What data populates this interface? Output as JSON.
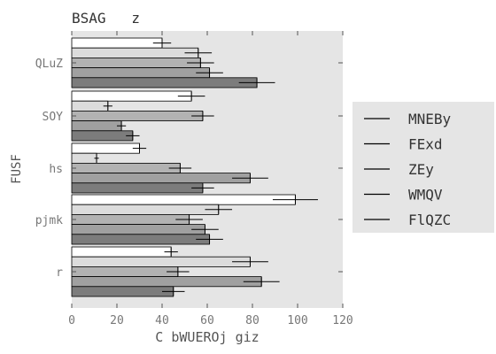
{
  "chart_data": {
    "type": "bar",
    "orientation": "horizontal",
    "title": "BSAG   z",
    "xlabel": "C bWUEROj giz",
    "ylabel": "FUSF",
    "xlim": [
      0,
      120
    ],
    "xticks": [
      0,
      20,
      40,
      60,
      80,
      100,
      120
    ],
    "categories": [
      "QLuZ",
      "SOY",
      "hs",
      "pjmk",
      "r"
    ],
    "grid": false,
    "legend_position": "right",
    "series": [
      {
        "name": "MNEBy",
        "color": "#ffffff",
        "values": [
          40,
          53,
          30,
          99,
          44
        ],
        "errors": [
          4,
          6,
          3,
          10,
          3
        ]
      },
      {
        "name": "FExd",
        "color": "#dcdcdc",
        "values": [
          56,
          16,
          11,
          65,
          79
        ],
        "errors": [
          6,
          2,
          1,
          6,
          8
        ]
      },
      {
        "name": "ZEy",
        "color": "#b2b2b2",
        "values": [
          57,
          58,
          48,
          52,
          47
        ],
        "errors": [
          6,
          5,
          5,
          6,
          5
        ]
      },
      {
        "name": "WMQV",
        "color": "#a0a0a0",
        "values": [
          61,
          22,
          79,
          59,
          84
        ],
        "errors": [
          6,
          2,
          8,
          6,
          8
        ]
      },
      {
        "name": "FlQZC",
        "color": "#7c7c7c",
        "values": [
          82,
          27,
          58,
          61,
          45
        ],
        "errors": [
          8,
          3,
          5,
          6,
          5
        ]
      }
    ]
  }
}
